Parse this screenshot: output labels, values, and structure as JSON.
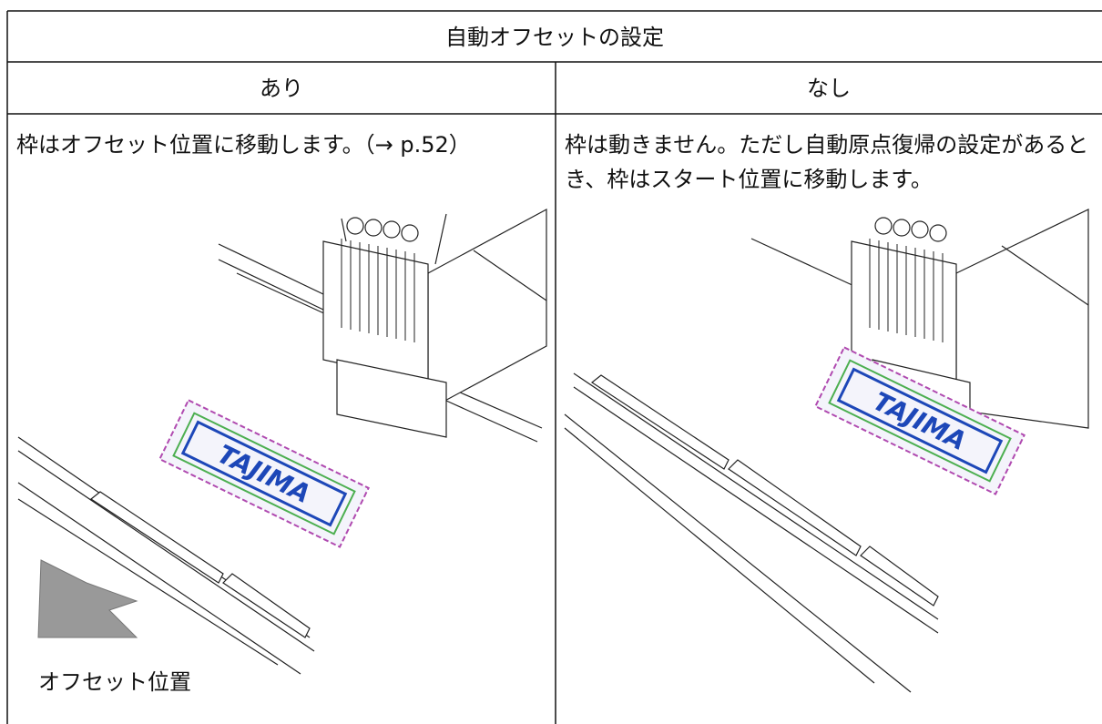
{
  "table": {
    "title": "自動オフセットの設定",
    "columns": [
      "あり",
      "なし"
    ],
    "rows": [
      [
        "枠はオフセット位置に移動します。（→ p.52）",
        "枠は動きません。ただし自動原点復帰の設定があるとき、枠はスタート位置に移動します。"
      ]
    ]
  },
  "illustrations": {
    "left_label": "オフセット位置",
    "patch_text": "TAJIMA"
  }
}
